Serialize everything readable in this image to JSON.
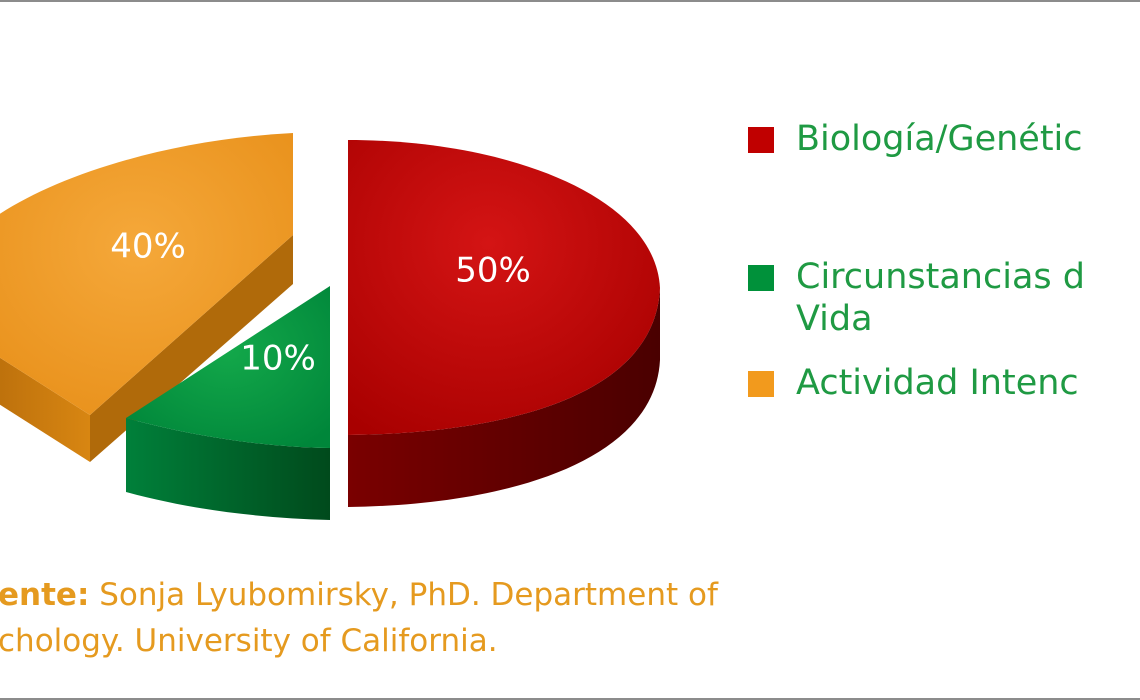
{
  "chart_data": {
    "type": "pie",
    "title": "",
    "slices": [
      {
        "label": "Biología/Genétic",
        "value": 50,
        "value_label": "50%",
        "color": "#c00000",
        "side_color": "#6b0000"
      },
      {
        "label": "Circunstancias d\nVida",
        "value": 10,
        "value_label": "10%",
        "color": "#00913a",
        "side_color": "#005a22"
      },
      {
        "label": "Actividad Intenc",
        "value": 40,
        "value_label": "40%",
        "color": "#f29a1d",
        "side_color": "#a86508"
      }
    ],
    "legend_position": "right"
  },
  "source": {
    "label": "ente:",
    "text": " Sonja Lyubomirsky, PhD. Department of",
    "line2": "chology. University of California."
  }
}
